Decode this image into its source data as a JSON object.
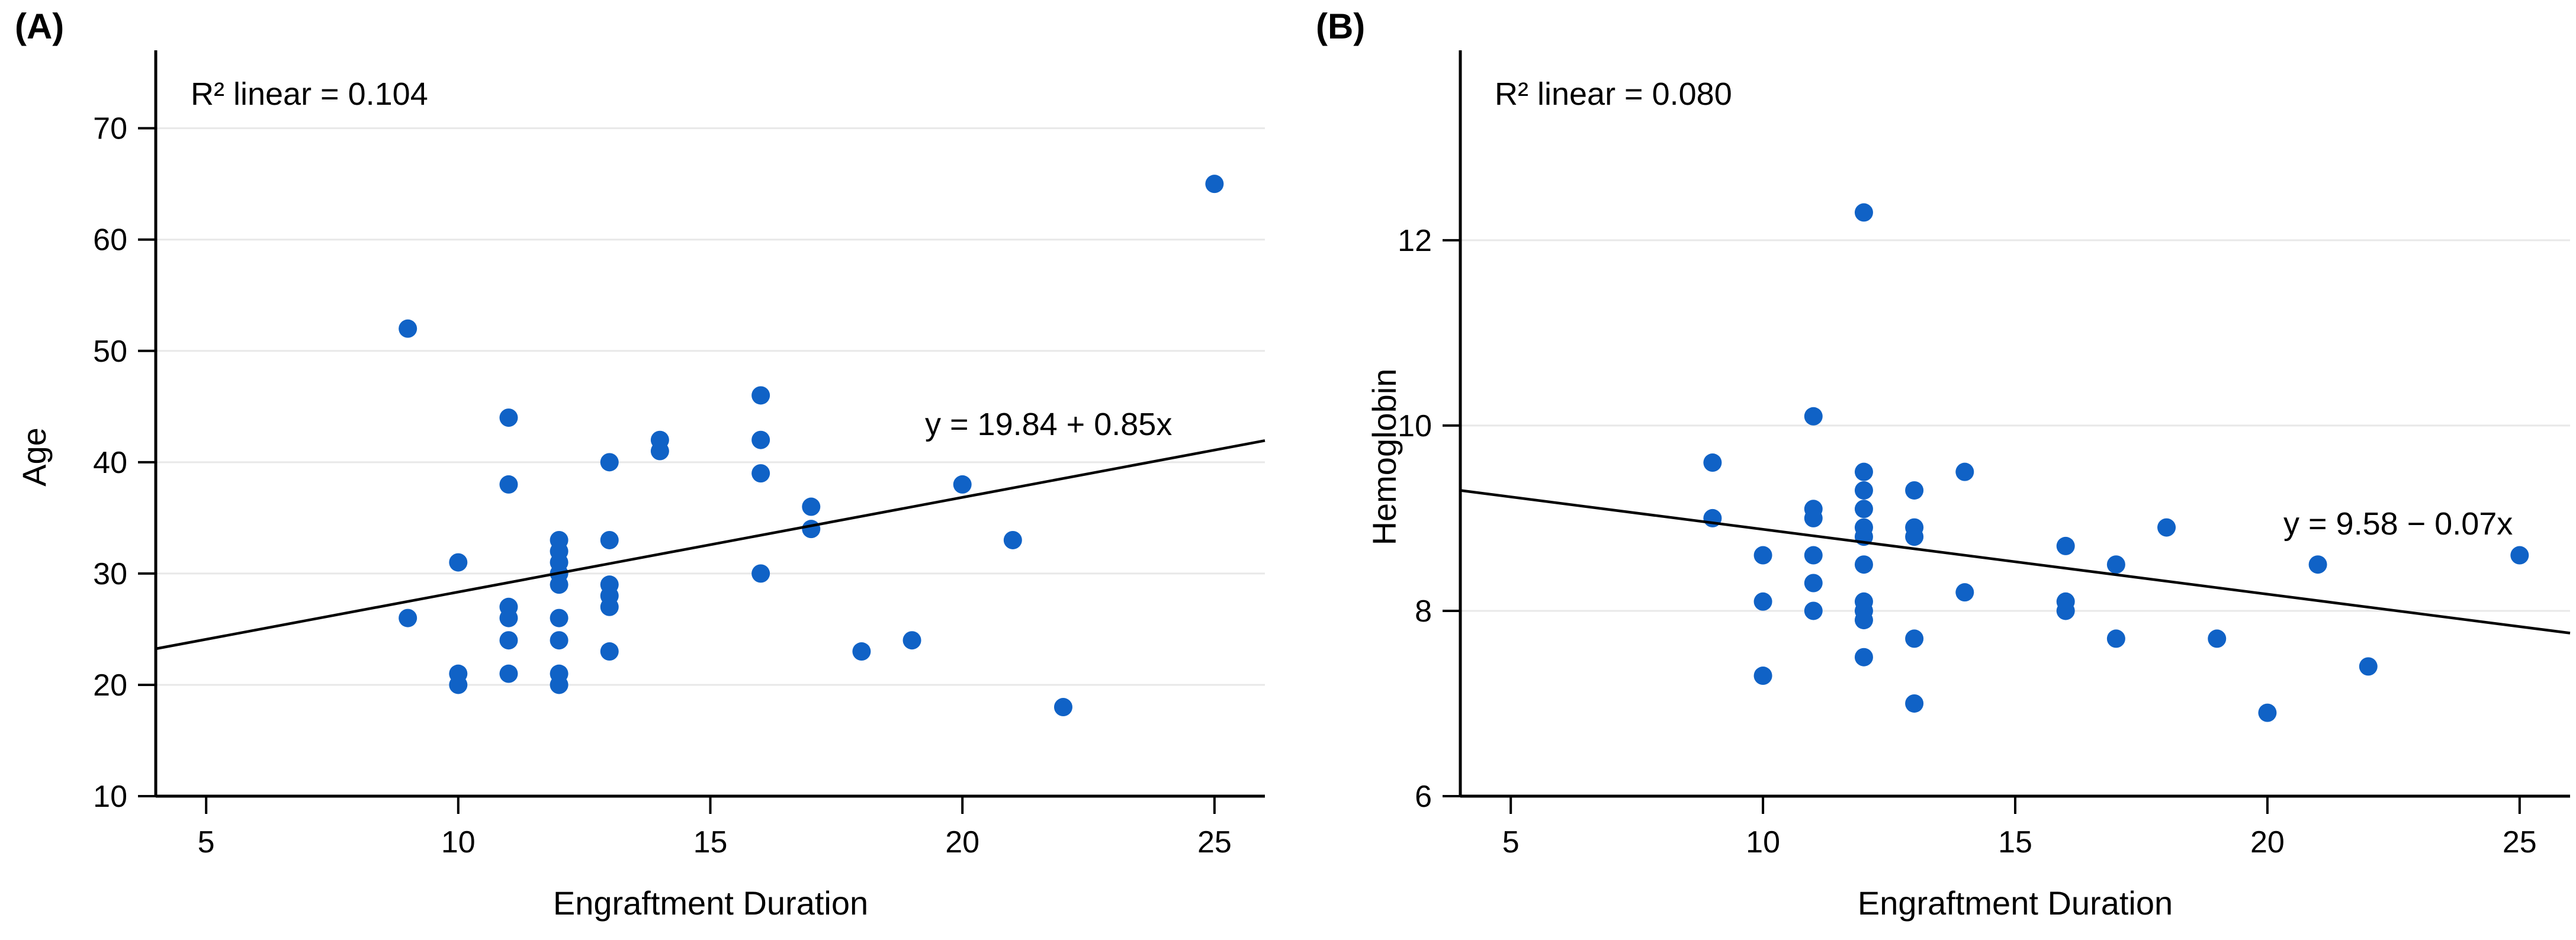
{
  "figure": {
    "background": "#ffffff",
    "dot_color": "#1062C6",
    "grid_color": "#E8E8E8",
    "axis_color": "#000000",
    "trend_color": "#000000",
    "text_color": "#000000"
  },
  "chart_data": [
    {
      "type": "scatter",
      "panel_label": "(A)",
      "xlabel": "Engraftment Duration",
      "ylabel": "Age",
      "r2_text": "R² linear = 0.104",
      "equation_text": "y = 19.84 + 0.85x",
      "regression": {
        "intercept": 19.84,
        "slope": 0.85
      },
      "xlim": [
        4,
        26
      ],
      "ylim": [
        10,
        77
      ],
      "x_ticks": [
        5,
        10,
        15,
        20,
        25
      ],
      "y_ticks": [
        10,
        20,
        30,
        40,
        50,
        60,
        70
      ],
      "grid": "horizontal",
      "legend": "none",
      "points": [
        [
          9,
          52
        ],
        [
          9,
          26
        ],
        [
          10,
          31
        ],
        [
          10,
          21
        ],
        [
          10,
          20
        ],
        [
          11,
          44
        ],
        [
          11,
          38
        ],
        [
          11,
          27
        ],
        [
          11,
          26
        ],
        [
          11,
          24
        ],
        [
          11,
          21
        ],
        [
          12,
          33
        ],
        [
          12,
          32
        ],
        [
          12,
          31
        ],
        [
          12,
          30
        ],
        [
          12,
          29
        ],
        [
          12,
          26
        ],
        [
          12,
          24
        ],
        [
          12,
          21
        ],
        [
          12,
          20
        ],
        [
          13,
          40
        ],
        [
          13,
          33
        ],
        [
          13,
          29
        ],
        [
          13,
          28
        ],
        [
          13,
          27
        ],
        [
          13,
          23
        ],
        [
          14,
          42
        ],
        [
          14,
          41
        ],
        [
          16,
          46
        ],
        [
          16,
          42
        ],
        [
          16,
          39
        ],
        [
          16,
          30
        ],
        [
          17,
          36
        ],
        [
          17,
          34
        ],
        [
          18,
          23
        ],
        [
          19,
          24
        ],
        [
          20,
          38
        ],
        [
          21,
          33
        ],
        [
          22,
          18
        ],
        [
          25,
          65
        ]
      ]
    },
    {
      "type": "scatter",
      "panel_label": "(B)",
      "xlabel": "Engraftment Duration",
      "ylabel": "Hemoglobin",
      "r2_text": "R² linear = 0.080",
      "equation_text": "y = 9.58 − 0.07x",
      "regression": {
        "intercept": 9.58,
        "slope": -0.07
      },
      "xlim": [
        4,
        26
      ],
      "ylim": [
        6,
        14.05
      ],
      "x_ticks": [
        5,
        10,
        15,
        20,
        25
      ],
      "y_ticks": [
        6,
        8,
        10,
        12
      ],
      "grid": "horizontal",
      "legend": "none",
      "points": [
        [
          9,
          9.6
        ],
        [
          9,
          9.0
        ],
        [
          10,
          8.6
        ],
        [
          10,
          8.1
        ],
        [
          10,
          7.3
        ],
        [
          11,
          10.1
        ],
        [
          11,
          9.1
        ],
        [
          11,
          9.0
        ],
        [
          11,
          8.6
        ],
        [
          11,
          8.3
        ],
        [
          11,
          8.0
        ],
        [
          12,
          12.3
        ],
        [
          12,
          9.5
        ],
        [
          12,
          9.3
        ],
        [
          12,
          9.1
        ],
        [
          12,
          8.9
        ],
        [
          12,
          8.8
        ],
        [
          12,
          8.5
        ],
        [
          12,
          8.1
        ],
        [
          12,
          8.0
        ],
        [
          12,
          7.9
        ],
        [
          12,
          7.5
        ],
        [
          13,
          9.3
        ],
        [
          13,
          8.9
        ],
        [
          13,
          8.8
        ],
        [
          13,
          7.7
        ],
        [
          13,
          7.0
        ],
        [
          14,
          9.5
        ],
        [
          14,
          8.2
        ],
        [
          16,
          8.7
        ],
        [
          16,
          8.1
        ],
        [
          16,
          8.0
        ],
        [
          17,
          8.5
        ],
        [
          17,
          7.7
        ],
        [
          18,
          8.9
        ],
        [
          19,
          7.7
        ],
        [
          20,
          6.9
        ],
        [
          21,
          8.5
        ],
        [
          22,
          7.4
        ],
        [
          25,
          8.6
        ]
      ]
    }
  ]
}
